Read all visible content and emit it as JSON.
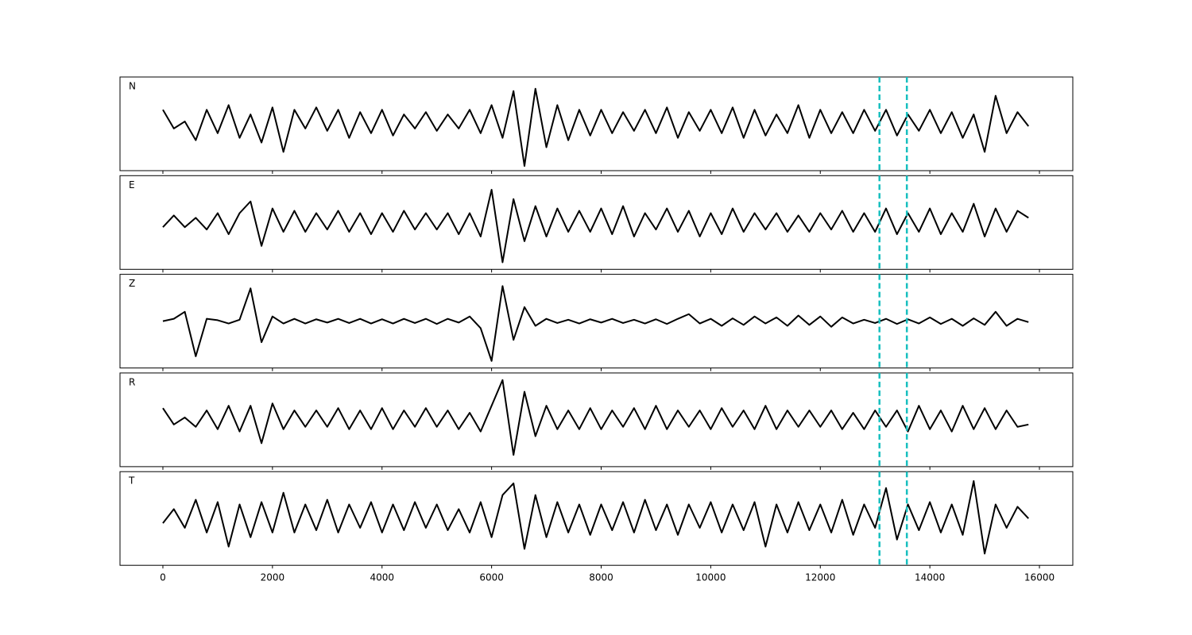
{
  "chart_data": {
    "type": "line",
    "layout": "stacked",
    "x": [
      0,
      200,
      400,
      600,
      800,
      1000,
      1200,
      1400,
      1600,
      1800,
      2000,
      2200,
      2400,
      2600,
      2800,
      3000,
      3200,
      3400,
      3600,
      3800,
      4000,
      4200,
      4400,
      4600,
      4800,
      5000,
      5200,
      5400,
      5600,
      5800,
      6000,
      6200,
      6400,
      6600,
      6800,
      7000,
      7200,
      7400,
      7600,
      7800,
      8000,
      8200,
      8400,
      8600,
      8800,
      9000,
      9200,
      9400,
      9600,
      9800,
      10000,
      10200,
      10400,
      10600,
      10800,
      11000,
      11200,
      11400,
      11600,
      11800,
      12000,
      12200,
      12400,
      12600,
      12800,
      13000,
      13200,
      13400,
      13600,
      13800,
      14000,
      14200,
      14400,
      14600,
      14800,
      15000,
      15200,
      15400,
      15600,
      15800
    ],
    "series": [
      {
        "name": "N",
        "color": "#000000",
        "values": [
          0.3,
          -0.1,
          0.05,
          -0.35,
          0.3,
          -0.2,
          0.4,
          -0.3,
          0.2,
          -0.4,
          0.35,
          -0.6,
          0.3,
          -0.1,
          0.35,
          -0.15,
          0.3,
          -0.3,
          0.25,
          -0.2,
          0.3,
          -0.25,
          0.2,
          -0.1,
          0.25,
          -0.15,
          0.2,
          -0.1,
          0.3,
          -0.2,
          0.4,
          -0.3,
          0.7,
          -0.9,
          0.75,
          -0.5,
          0.4,
          -0.35,
          0.3,
          -0.25,
          0.3,
          -0.2,
          0.25,
          -0.15,
          0.3,
          -0.2,
          0.35,
          -0.3,
          0.25,
          -0.15,
          0.3,
          -0.2,
          0.35,
          -0.3,
          0.3,
          -0.25,
          0.2,
          -0.2,
          0.4,
          -0.3,
          0.3,
          -0.2,
          0.25,
          -0.2,
          0.3,
          -0.15,
          0.3,
          -0.25,
          0.2,
          -0.15,
          0.3,
          -0.2,
          0.25,
          -0.3,
          0.2,
          -0.6,
          0.6,
          -0.2,
          0.25,
          -0.05
        ]
      },
      {
        "name": "E",
        "color": "#000000",
        "values": [
          -0.1,
          0.15,
          -0.1,
          0.1,
          -0.15,
          0.2,
          -0.25,
          0.2,
          0.45,
          -0.5,
          0.3,
          -0.2,
          0.25,
          -0.2,
          0.2,
          -0.15,
          0.25,
          -0.2,
          0.2,
          -0.25,
          0.2,
          -0.2,
          0.25,
          -0.15,
          0.2,
          -0.15,
          0.2,
          -0.25,
          0.2,
          -0.3,
          0.7,
          -0.85,
          0.5,
          -0.4,
          0.35,
          -0.3,
          0.3,
          -0.2,
          0.25,
          -0.2,
          0.3,
          -0.25,
          0.35,
          -0.3,
          0.2,
          -0.15,
          0.3,
          -0.2,
          0.25,
          -0.3,
          0.2,
          -0.25,
          0.3,
          -0.2,
          0.2,
          -0.15,
          0.2,
          -0.2,
          0.15,
          -0.2,
          0.2,
          -0.15,
          0.25,
          -0.2,
          0.2,
          -0.2,
          0.3,
          -0.25,
          0.2,
          -0.2,
          0.3,
          -0.25,
          0.2,
          -0.2,
          0.4,
          -0.3,
          0.3,
          -0.2,
          0.25,
          0.1
        ]
      },
      {
        "name": "Z",
        "color": "#000000",
        "values": [
          0.0,
          0.05,
          0.2,
          -0.75,
          0.05,
          0.02,
          -0.05,
          0.03,
          0.7,
          -0.45,
          0.1,
          -0.05,
          0.05,
          -0.05,
          0.04,
          -0.03,
          0.05,
          -0.04,
          0.05,
          -0.05,
          0.04,
          -0.05,
          0.05,
          -0.04,
          0.05,
          -0.06,
          0.05,
          -0.03,
          0.1,
          -0.15,
          -0.85,
          0.75,
          -0.4,
          0.3,
          -0.1,
          0.05,
          -0.04,
          0.03,
          -0.05,
          0.04,
          -0.03,
          0.05,
          -0.04,
          0.03,
          -0.05,
          0.04,
          -0.06,
          0.05,
          0.15,
          -0.05,
          0.05,
          -0.1,
          0.06,
          -0.08,
          0.1,
          -0.05,
          0.08,
          -0.1,
          0.12,
          -0.08,
          0.1,
          -0.12,
          0.08,
          -0.05,
          0.03,
          -0.04,
          0.05,
          -0.06,
          0.04,
          -0.05,
          0.08,
          -0.06,
          0.05,
          -0.1,
          0.06,
          -0.08,
          0.2,
          -0.1,
          0.05,
          -0.02
        ]
      },
      {
        "name": "R",
        "color": "#000000",
        "values": [
          0.25,
          -0.1,
          0.05,
          -0.15,
          0.2,
          -0.2,
          0.3,
          -0.25,
          0.3,
          -0.5,
          0.35,
          -0.2,
          0.2,
          -0.15,
          0.2,
          -0.15,
          0.25,
          -0.2,
          0.2,
          -0.2,
          0.25,
          -0.2,
          0.2,
          -0.15,
          0.25,
          -0.15,
          0.2,
          -0.2,
          0.15,
          -0.25,
          0.3,
          0.85,
          -0.75,
          0.6,
          -0.35,
          0.3,
          -0.2,
          0.2,
          -0.2,
          0.25,
          -0.2,
          0.2,
          -0.15,
          0.25,
          -0.2,
          0.3,
          -0.2,
          0.2,
          -0.15,
          0.2,
          -0.2,
          0.25,
          -0.15,
          0.2,
          -0.2,
          0.3,
          -0.2,
          0.2,
          -0.15,
          0.2,
          -0.15,
          0.2,
          -0.2,
          0.15,
          -0.2,
          0.2,
          -0.15,
          0.2,
          -0.25,
          0.3,
          -0.2,
          0.2,
          -0.25,
          0.3,
          -0.2,
          0.25,
          -0.2,
          0.2,
          -0.15,
          -0.1
        ]
      },
      {
        "name": "T",
        "color": "#000000",
        "values": [
          -0.1,
          0.2,
          -0.2,
          0.4,
          -0.3,
          0.35,
          -0.6,
          0.3,
          -0.4,
          0.35,
          -0.3,
          0.55,
          -0.3,
          0.3,
          -0.25,
          0.4,
          -0.3,
          0.3,
          -0.2,
          0.35,
          -0.3,
          0.3,
          -0.25,
          0.35,
          -0.2,
          0.3,
          -0.25,
          0.2,
          -0.3,
          0.35,
          -0.4,
          0.5,
          0.75,
          -0.65,
          0.5,
          -0.4,
          0.35,
          -0.3,
          0.3,
          -0.35,
          0.3,
          -0.25,
          0.35,
          -0.3,
          0.4,
          -0.25,
          0.3,
          -0.35,
          0.3,
          -0.2,
          0.35,
          -0.3,
          0.3,
          -0.25,
          0.35,
          -0.6,
          0.3,
          -0.3,
          0.35,
          -0.25,
          0.3,
          -0.3,
          0.4,
          -0.35,
          0.3,
          -0.2,
          0.65,
          -0.45,
          0.3,
          -0.25,
          0.35,
          -0.3,
          0.3,
          -0.35,
          0.8,
          -0.75,
          0.3,
          -0.2,
          0.25,
          0.0
        ]
      }
    ],
    "xlim": [
      -783,
      16609
    ],
    "ylim": [
      -1,
      1
    ],
    "xticks": [
      0,
      2000,
      4000,
      6000,
      8000,
      10000,
      12000,
      14000,
      16000
    ],
    "vlines": [
      13080,
      13580
    ],
    "vline_color": "#17bfbf"
  }
}
